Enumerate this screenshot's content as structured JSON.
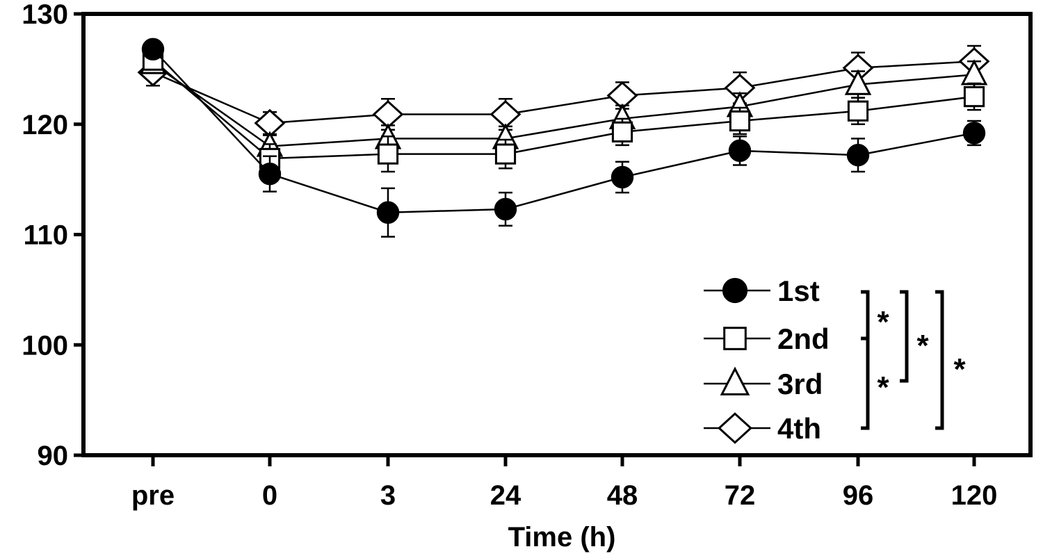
{
  "chart_data": {
    "type": "line",
    "title": "",
    "xlabel": "Time (h)",
    "ylabel": "",
    "categories": [
      "pre",
      "0",
      "3",
      "24",
      "48",
      "72",
      "96",
      "120"
    ],
    "ylim": [
      90,
      130
    ],
    "yticks": [
      "90",
      "100",
      "110",
      "120",
      "130"
    ],
    "grid": false,
    "legend_position": "bottom-right",
    "series": [
      {
        "name": "1st",
        "marker": "filled-circle",
        "values": [
          126.8,
          115.5,
          112.0,
          112.3,
          115.2,
          117.6,
          117.2,
          119.2
        ],
        "errors": [
          0.5,
          1.6,
          2.2,
          1.5,
          1.4,
          1.3,
          1.5,
          1.1
        ]
      },
      {
        "name": "2nd",
        "marker": "open-square",
        "values": [
          125.8,
          116.9,
          117.3,
          117.3,
          119.3,
          120.3,
          121.2,
          122.5
        ],
        "errors": [
          0.8,
          1.3,
          1.6,
          1.3,
          1.2,
          1.2,
          1.2,
          1.2
        ]
      },
      {
        "name": "3rd",
        "marker": "open-triangle",
        "values": [
          125.5,
          118.0,
          118.7,
          118.7,
          120.5,
          121.6,
          123.6,
          124.5
        ],
        "errors": [
          0.8,
          1.0,
          1.2,
          1.1,
          1.2,
          1.2,
          1.2,
          1.2
        ]
      },
      {
        "name": "4th",
        "marker": "open-diamond",
        "values": [
          124.7,
          120.1,
          120.9,
          120.9,
          122.6,
          123.3,
          125.1,
          125.7
        ],
        "errors": [
          1.2,
          1.0,
          1.4,
          1.4,
          1.2,
          1.4,
          1.4,
          1.4
        ]
      }
    ],
    "significance_marks": [
      "*",
      "*",
      "*",
      "*"
    ]
  }
}
